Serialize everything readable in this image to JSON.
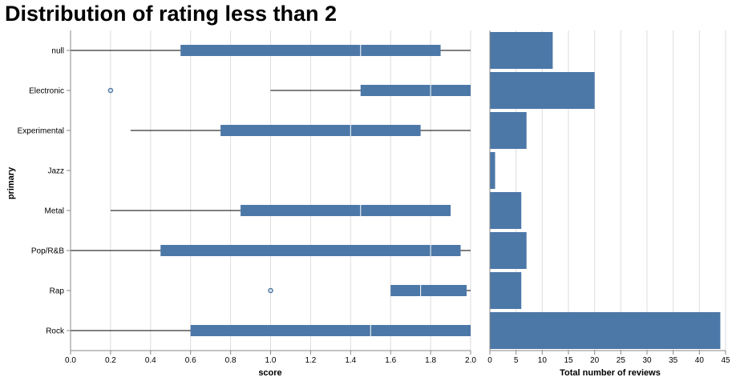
{
  "chart_data": {
    "type": "boxplot-with-bar",
    "title": "Distribution of rating less than 2",
    "box_panel": {
      "type": "boxplot",
      "orientation": "horizontal",
      "xlabel": "score",
      "ylabel": "primary",
      "xlim": [
        0,
        2.0
      ],
      "xticks": [
        "0.0",
        "0.2",
        "0.4",
        "0.6",
        "0.8",
        "1.0",
        "1.2",
        "1.4",
        "1.6",
        "1.8",
        "2.0"
      ],
      "grid": true,
      "categories": [
        "null",
        "Electronic",
        "Experimental",
        "Jazz",
        "Metal",
        "Pop/R&B",
        "Rap",
        "Rock"
      ],
      "boxes": [
        {
          "category": "null",
          "min": 0.0,
          "q1": 0.55,
          "median": 1.45,
          "q3": 1.85,
          "max": 2.0,
          "outliers": []
        },
        {
          "category": "Electronic",
          "min": 1.0,
          "q1": 1.45,
          "median": 1.8,
          "q3": 2.0,
          "max": 2.0,
          "outliers": [
            0.2
          ]
        },
        {
          "category": "Experimental",
          "min": 0.3,
          "q1": 0.75,
          "median": 1.4,
          "q3": 1.75,
          "max": 2.0,
          "outliers": []
        },
        {
          "category": "Jazz",
          "min": 1.0,
          "q1": 1.0,
          "median": 1.0,
          "q3": 1.0,
          "max": 1.0,
          "outliers": []
        },
        {
          "category": "Metal",
          "min": 0.2,
          "q1": 0.85,
          "median": 1.45,
          "q3": 1.9,
          "max": 1.9,
          "outliers": []
        },
        {
          "category": "Pop/R&B",
          "min": 0.0,
          "q1": 0.45,
          "median": 1.8,
          "q3": 1.95,
          "max": 2.0,
          "outliers": []
        },
        {
          "category": "Rap",
          "min": 1.6,
          "q1": 1.6,
          "median": 1.75,
          "q3": 1.98,
          "max": 2.0,
          "outliers": [
            1.0
          ]
        },
        {
          "category": "Rock",
          "min": 0.0,
          "q1": 0.6,
          "median": 1.5,
          "q3": 2.0,
          "max": 2.0,
          "outliers": []
        }
      ]
    },
    "bar_panel": {
      "type": "bar",
      "orientation": "horizontal",
      "xlabel": "Total number of reviews",
      "xlim": [
        0,
        45
      ],
      "xticks": [
        "0",
        "5",
        "10",
        "15",
        "20",
        "25",
        "30",
        "35",
        "40",
        "45"
      ],
      "grid": true,
      "categories": [
        "null",
        "Electronic",
        "Experimental",
        "Jazz",
        "Metal",
        "Pop/R&B",
        "Rap",
        "Rock"
      ],
      "values": [
        12,
        20,
        7,
        1,
        6,
        7,
        6,
        44
      ]
    },
    "colors": {
      "bar": "#4c78a8",
      "median": "#ffffff",
      "whisker": "#000000",
      "grid": "#dddddd",
      "axis": "#888888"
    }
  }
}
